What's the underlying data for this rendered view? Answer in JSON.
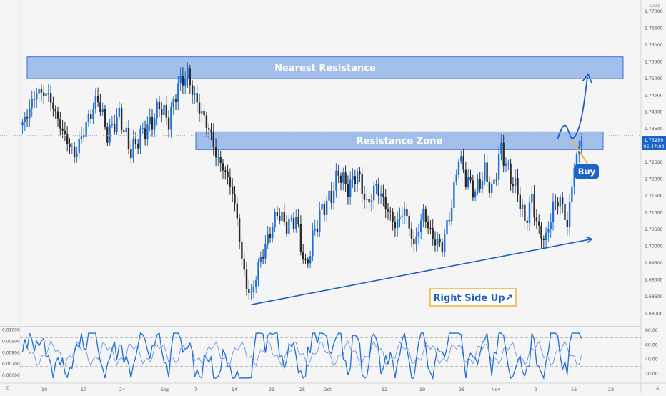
{
  "colors": {
    "background": "#f5f5f5",
    "bull": "#1e6fd9",
    "bear": "#2b2b2b",
    "zone_fill": "#7fa7e6",
    "zone_stroke": "#3a6fcf",
    "annotation": "#1e5fc7",
    "buy_bg": "#1a63c9",
    "caption_border": "#f2b134",
    "price_badge": "#1a63c9",
    "axis_text": "#555555",
    "osc_fast": "#1e6fd9",
    "osc_slow": "#5b8ee6"
  },
  "header": {
    "currency": "CAD"
  },
  "price_badge": {
    "price": "1.73289",
    "countdown": "05:47:02"
  },
  "annotations": {
    "nearest_resistance": "Nearest Resistance",
    "resistance_zone": "Resistance Zone",
    "buy": "Buy",
    "caption": "Right Side Up↗"
  },
  "chart_data": {
    "type": "candlestick",
    "ylim": [
      1.677,
      1.772
    ],
    "ytick_labels": [
      "1.77000",
      "1.76500",
      "1.76000",
      "1.75500",
      "1.75000",
      "1.74500",
      "1.74000",
      "1.73500",
      "1.73000",
      "1.72500",
      "1.72000",
      "1.71500",
      "1.71000",
      "1.70500",
      "1.70000",
      "1.69500",
      "1.69000",
      "1.68500",
      "1.68000"
    ],
    "xtick_labels": [
      "10",
      "17",
      "24",
      "Sep",
      "7",
      "14",
      "21",
      "25",
      "Oct",
      "12",
      "19",
      "26",
      "Nov",
      "9",
      "16",
      "23"
    ],
    "waypoints": [
      [
        0,
        1.736
      ],
      [
        6,
        1.746
      ],
      [
        11,
        1.745
      ],
      [
        17,
        1.734
      ],
      [
        22,
        1.727
      ],
      [
        28,
        1.738
      ],
      [
        32,
        1.744
      ],
      [
        36,
        1.733
      ],
      [
        41,
        1.739
      ],
      [
        46,
        1.728
      ],
      [
        50,
        1.733
      ],
      [
        55,
        1.737
      ],
      [
        58,
        1.742
      ],
      [
        62,
        1.737
      ],
      [
        66,
        1.748
      ],
      [
        70,
        1.751
      ],
      [
        73,
        1.744
      ],
      [
        77,
        1.738
      ],
      [
        80,
        1.733
      ],
      [
        82,
        1.727
      ],
      [
        86,
        1.722
      ],
      [
        89,
        1.716
      ],
      [
        91,
        1.708
      ],
      [
        93,
        1.696
      ],
      [
        95,
        1.688
      ],
      [
        97,
        1.685
      ],
      [
        100,
        1.694
      ],
      [
        104,
        1.702
      ],
      [
        108,
        1.71
      ],
      [
        112,
        1.706
      ],
      [
        116,
        1.708
      ],
      [
        120,
        1.693
      ],
      [
        124,
        1.705
      ],
      [
        127,
        1.711
      ],
      [
        131,
        1.715
      ],
      [
        134,
        1.722
      ],
      [
        138,
        1.717
      ],
      [
        142,
        1.722
      ],
      [
        146,
        1.712
      ],
      [
        150,
        1.718
      ],
      [
        154,
        1.712
      ],
      [
        158,
        1.706
      ],
      [
        162,
        1.711
      ],
      [
        166,
        1.7
      ],
      [
        170,
        1.71
      ],
      [
        174,
        1.702
      ],
      [
        178,
        1.7
      ],
      [
        182,
        1.712
      ],
      [
        185,
        1.727
      ],
      [
        188,
        1.72
      ],
      [
        192,
        1.716
      ],
      [
        196,
        1.722
      ],
      [
        199,
        1.716
      ],
      [
        203,
        1.729
      ],
      [
        206,
        1.722
      ],
      [
        210,
        1.716
      ],
      [
        213,
        1.707
      ],
      [
        216,
        1.714
      ],
      [
        219,
        1.704
      ],
      [
        222,
        1.702
      ],
      [
        225,
        1.712
      ],
      [
        228,
        1.714
      ],
      [
        231,
        1.706
      ],
      [
        234,
        1.724
      ],
      [
        237,
        1.732
      ]
    ],
    "zones": [
      {
        "label": "Nearest Resistance",
        "y1": 1.7498,
        "y2": 1.7563
      },
      {
        "label": "Resistance Zone",
        "y1": 1.7287,
        "y2": 1.734
      }
    ],
    "trendlines": [
      {
        "from": [
          97,
          1.6825
        ],
        "to": [
          236,
          1.7014
        ]
      }
    ],
    "oscillator": {
      "ylim_left": [
        0.0055,
        0.0101
      ],
      "ytick_left": [
        "0.01000",
        "0.00900",
        "0.00800",
        "0.00700",
        "0.00600"
      ],
      "ylim_right": [
        10,
        82
      ],
      "ytick_right": [
        "80.00",
        "60.00",
        "40.00",
        "20.00"
      ],
      "dashed_levels_right": [
        70,
        30
      ]
    }
  }
}
